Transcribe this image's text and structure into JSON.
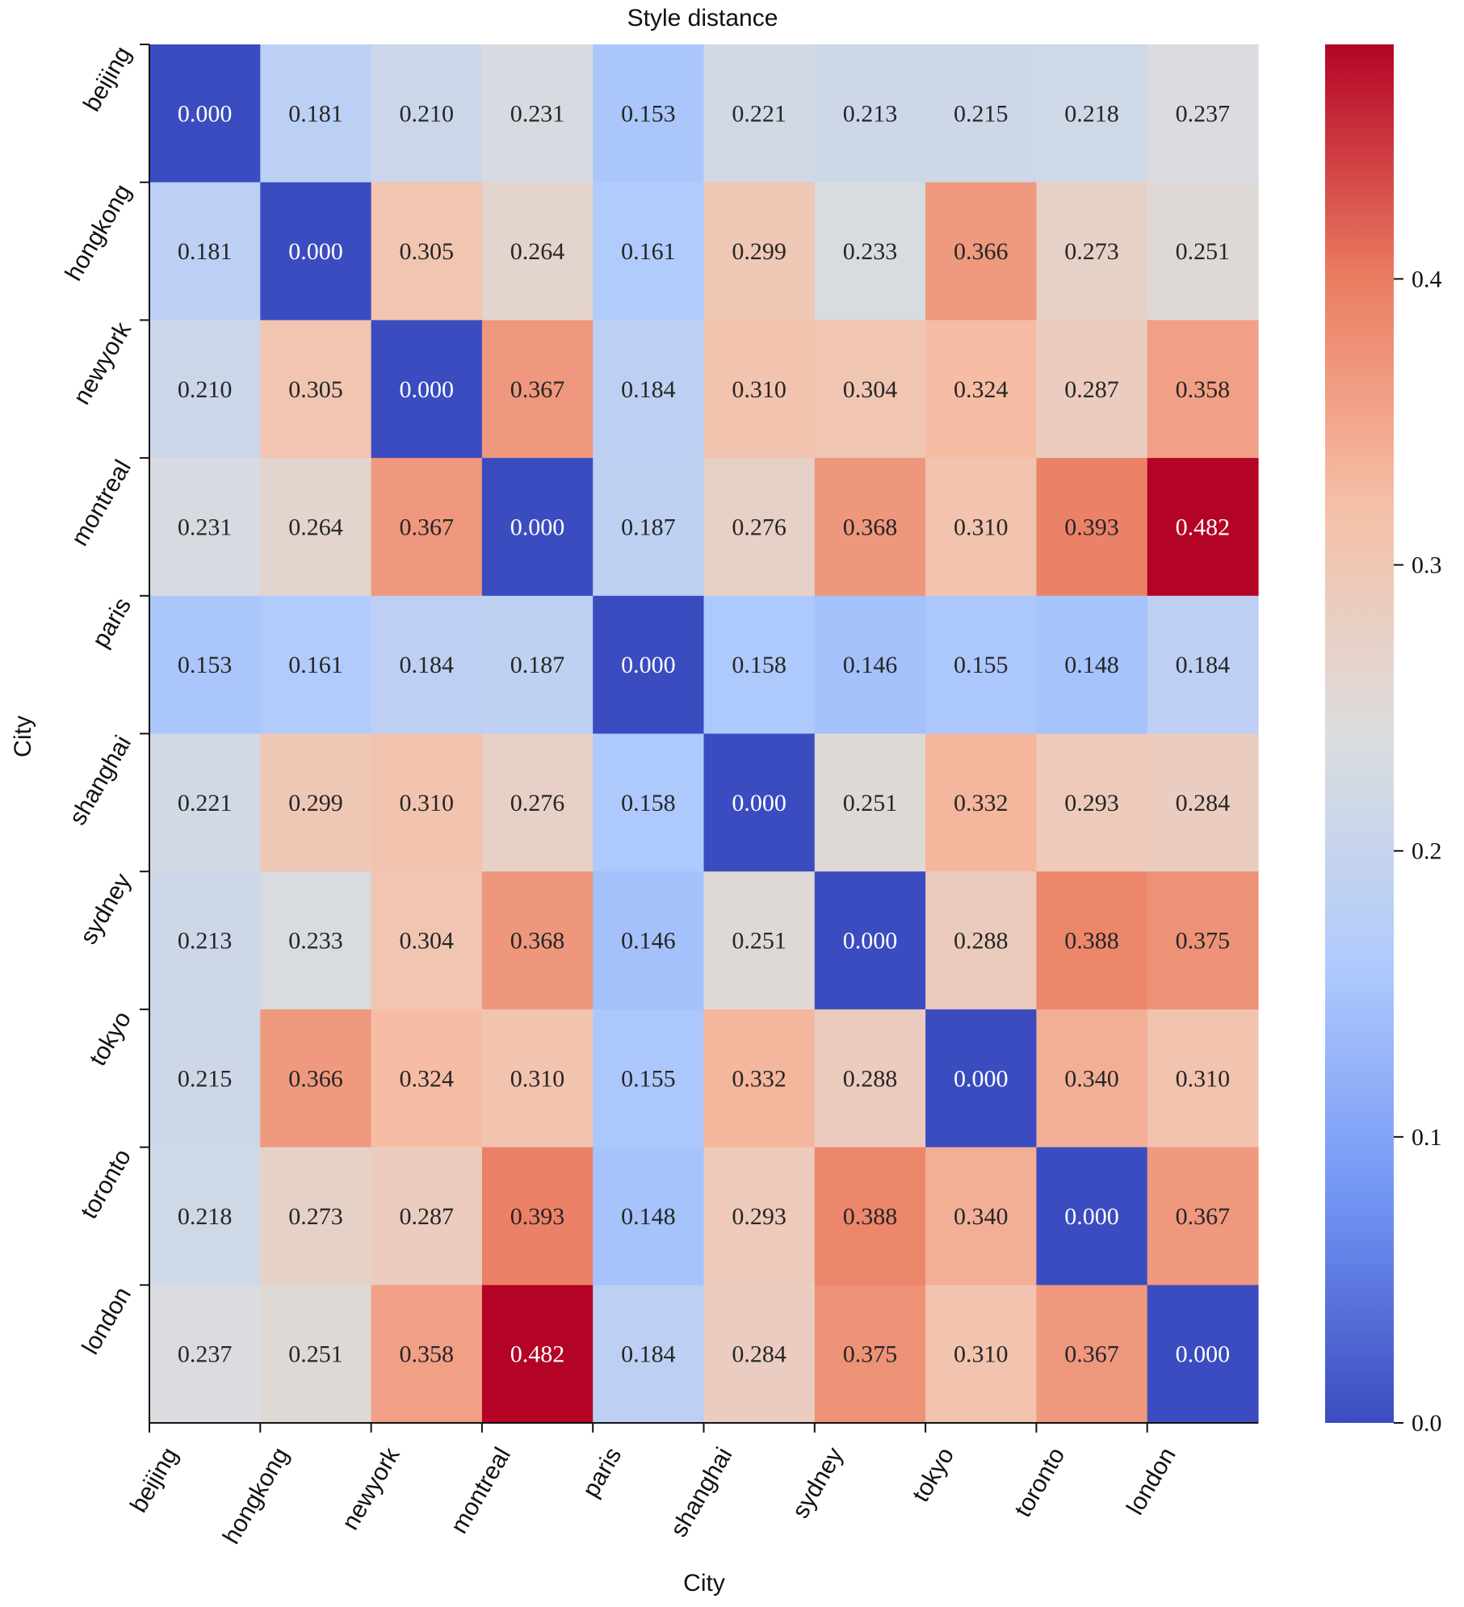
{
  "chart_data": {
    "type": "heatmap",
    "title": "Style distance",
    "xlabel": "City",
    "ylabel": "City",
    "categories": [
      "beijing",
      "hongkong",
      "newyork",
      "montreal",
      "paris",
      "shanghai",
      "sydney",
      "tokyo",
      "toronto",
      "london"
    ],
    "values": [
      [
        0.0,
        0.181,
        0.21,
        0.231,
        0.153,
        0.221,
        0.213,
        0.215,
        0.218,
        0.237
      ],
      [
        0.181,
        0.0,
        0.305,
        0.264,
        0.161,
        0.299,
        0.233,
        0.366,
        0.273,
        0.251
      ],
      [
        0.21,
        0.305,
        0.0,
        0.367,
        0.184,
        0.31,
        0.304,
        0.324,
        0.287,
        0.358
      ],
      [
        0.231,
        0.264,
        0.367,
        0.0,
        0.187,
        0.276,
        0.368,
        0.31,
        0.393,
        0.482
      ],
      [
        0.153,
        0.161,
        0.184,
        0.187,
        0.0,
        0.158,
        0.146,
        0.155,
        0.148,
        0.184
      ],
      [
        0.221,
        0.299,
        0.31,
        0.276,
        0.158,
        0.0,
        0.251,
        0.332,
        0.293,
        0.284
      ],
      [
        0.213,
        0.233,
        0.304,
        0.368,
        0.146,
        0.251,
        0.0,
        0.288,
        0.388,
        0.375
      ],
      [
        0.215,
        0.366,
        0.324,
        0.31,
        0.155,
        0.332,
        0.288,
        0.0,
        0.34,
        0.31
      ],
      [
        0.218,
        0.273,
        0.287,
        0.393,
        0.148,
        0.293,
        0.388,
        0.34,
        0.0,
        0.367
      ],
      [
        0.237,
        0.251,
        0.358,
        0.482,
        0.184,
        0.284,
        0.375,
        0.31,
        0.367,
        0.0
      ]
    ],
    "value_format_decimals": 3,
    "colormap": "coolwarm",
    "colormap_stops": [
      "#3b4cc0",
      "#7396f5",
      "#b0cbfc",
      "#dcdddd",
      "#f6bfa6",
      "#ea7b60",
      "#b40426"
    ],
    "colorbar": {
      "range": [
        0.0,
        0.482
      ],
      "ticks": [
        0.0,
        0.1,
        0.2,
        0.3,
        0.4
      ],
      "tick_labels": [
        "0.0",
        "0.1",
        "0.2",
        "0.3",
        "0.4"
      ],
      "placement": "right"
    },
    "grid": false
  }
}
